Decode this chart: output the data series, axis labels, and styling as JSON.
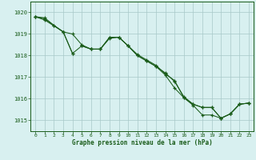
{
  "bg_color": "#d8f0f0",
  "grid_color": "#a8c8c8",
  "line_color": "#1a5c1a",
  "xlabel": "Graphe pression niveau de la mer (hPa)",
  "xlim": [
    -0.5,
    23.5
  ],
  "ylim": [
    1014.5,
    1020.5
  ],
  "yticks": [
    1015,
    1016,
    1017,
    1018,
    1019,
    1020
  ],
  "xticks": [
    0,
    1,
    2,
    3,
    4,
    5,
    6,
    7,
    8,
    9,
    10,
    11,
    12,
    13,
    14,
    15,
    16,
    17,
    18,
    19,
    20,
    21,
    22,
    23
  ],
  "series_a": [
    1019.8,
    1019.75,
    1019.4,
    1019.1,
    1018.1,
    1018.45,
    1018.3,
    1018.3,
    1018.85,
    1018.85,
    1018.45,
    1018.05,
    1017.8,
    1017.55,
    1017.15,
    1016.85,
    1016.05,
    1015.75,
    1015.6,
    1015.6,
    1015.1,
    1015.3,
    1015.75,
    1015.8
  ],
  "series_b_x": [
    0,
    1,
    3,
    4,
    5,
    6,
    7,
    8,
    9,
    10,
    11,
    12,
    13,
    14,
    15,
    16,
    17,
    18,
    19,
    20,
    21,
    22,
    23
  ],
  "series_b_y": [
    1019.8,
    1019.65,
    1019.1,
    1019.0,
    1018.5,
    1018.3,
    1018.3,
    1018.8,
    1018.85,
    1018.45,
    1018.0,
    1017.75,
    1017.5,
    1017.1,
    1016.5,
    1016.05,
    1015.7,
    1015.25,
    1015.25,
    1015.1,
    1015.3,
    1015.75,
    1015.8
  ],
  "series_c_x": [
    0,
    1,
    2,
    3,
    4
  ],
  "series_c_y": [
    1019.8,
    1019.7,
    1019.4,
    1019.1,
    1018.1
  ],
  "series_d_x": [
    5,
    6,
    7,
    8,
    9,
    10,
    11,
    12,
    13,
    14,
    15,
    16,
    17,
    18,
    19,
    20,
    21,
    22,
    23
  ],
  "series_d_y": [
    1018.45,
    1018.3,
    1018.3,
    1018.85,
    1018.85,
    1018.45,
    1018.0,
    1017.75,
    1017.5,
    1017.2,
    1016.8,
    1016.1,
    1015.75,
    1015.6,
    1015.6,
    1015.1,
    1015.3,
    1015.75,
    1015.8
  ]
}
